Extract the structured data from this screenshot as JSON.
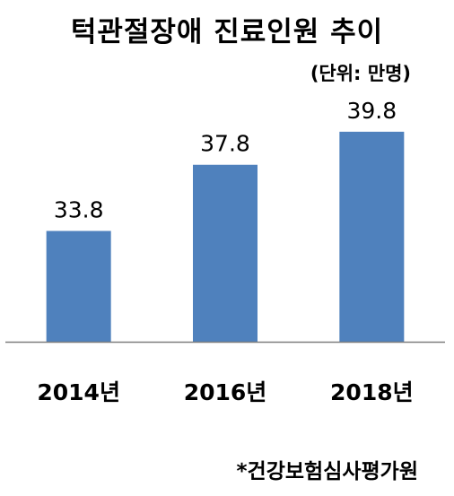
{
  "chart_data": {
    "type": "bar",
    "title": "턱관절장애 진료인원 추이",
    "unit_label": "(단위: 만명)",
    "categories": [
      "2014년",
      "2016년",
      "2018년"
    ],
    "values": [
      33.8,
      37.8,
      39.8
    ],
    "value_labels": [
      "33.8",
      "37.8",
      "39.8"
    ],
    "ylim": [
      27.1,
      41.8
    ],
    "grid": false,
    "legend": "none",
    "bar_color": "#4F81BD",
    "axis_color": "#7F7F7F"
  },
  "source": "*건강보험심사평가원"
}
